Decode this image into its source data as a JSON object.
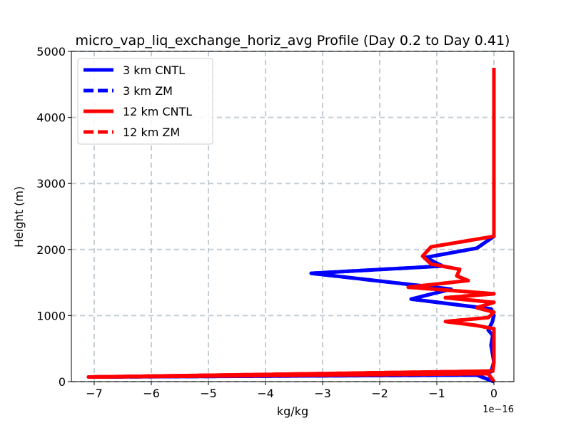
{
  "chart_data": {
    "type": "line",
    "title": "micro_vap_liq_exchange_horiz_avg Profile (Day 0.2 to Day 0.41)",
    "xlabel": "kg/kg",
    "ylabel": "Height (m)",
    "x_offset_label": "1e−16",
    "x_scale": 1e-16,
    "xlim": [
      -7.4,
      0.35
    ],
    "ylim": [
      0,
      5000
    ],
    "grid": true,
    "grid_style": "dashed",
    "legend_position": "upper-left",
    "x_ticks": [
      -7,
      -6,
      -5,
      -4,
      -3,
      -2,
      -1,
      0
    ],
    "x_tick_labels": [
      "−7",
      "−6",
      "−5",
      "−4",
      "−3",
      "−2",
      "−1",
      "0"
    ],
    "y_ticks": [
      0,
      1000,
      2000,
      3000,
      4000,
      5000
    ],
    "y_tick_labels": [
      "0",
      "1000",
      "2000",
      "3000",
      "4000",
      "5000"
    ],
    "series": [
      {
        "name": "3 km CNTL",
        "color": "#0000ff",
        "dash": "solid",
        "points": [
          [
            0,
            0
          ],
          [
            -0.3,
            100
          ],
          [
            -7.1,
            70
          ],
          [
            -0.05,
            150
          ],
          [
            0,
            300
          ],
          [
            -0.05,
            550
          ],
          [
            -0.02,
            700
          ],
          [
            -0.1,
            780
          ],
          [
            -0.03,
            900
          ],
          [
            0,
            1000
          ],
          [
            -0.05,
            1100
          ],
          [
            -1.45,
            1250
          ],
          [
            -0.75,
            1400
          ],
          [
            -3.2,
            1640
          ],
          [
            -0.9,
            1750
          ],
          [
            -1.2,
            1880
          ],
          [
            -0.3,
            2020
          ],
          [
            0,
            2200
          ],
          [
            0,
            2500
          ],
          [
            0,
            3000
          ],
          [
            0,
            4000
          ],
          [
            0,
            4750
          ]
        ]
      },
      {
        "name": "3 km ZM",
        "color": "#0000ff",
        "dash": "dashed",
        "points": [
          [
            0,
            0
          ],
          [
            -0.3,
            100
          ],
          [
            -7.1,
            70
          ],
          [
            -0.05,
            150
          ],
          [
            0,
            300
          ],
          [
            -0.05,
            550
          ],
          [
            -0.02,
            700
          ],
          [
            -0.1,
            780
          ],
          [
            -0.03,
            900
          ],
          [
            0,
            1000
          ],
          [
            -0.05,
            1100
          ],
          [
            -1.45,
            1250
          ],
          [
            -0.75,
            1400
          ],
          [
            -3.2,
            1640
          ],
          [
            -0.9,
            1750
          ],
          [
            -1.2,
            1880
          ],
          [
            -0.3,
            2020
          ],
          [
            0,
            2200
          ],
          [
            0,
            2500
          ],
          [
            0,
            3000
          ],
          [
            0,
            4000
          ],
          [
            0,
            4750
          ]
        ]
      },
      {
        "name": "12 km CNTL",
        "color": "#ff0000",
        "dash": "solid",
        "points": [
          [
            0,
            0
          ],
          [
            -0.1,
            120
          ],
          [
            -7.1,
            70
          ],
          [
            -0.02,
            160
          ],
          [
            0,
            300
          ],
          [
            0,
            600
          ],
          [
            0,
            800
          ],
          [
            -0.3,
            850
          ],
          [
            -0.85,
            910
          ],
          [
            -0.1,
            970
          ],
          [
            0,
            1050
          ],
          [
            -0.3,
            1120
          ],
          [
            0,
            1200
          ],
          [
            -0.85,
            1270
          ],
          [
            0,
            1330
          ],
          [
            -1.5,
            1430
          ],
          [
            -0.45,
            1530
          ],
          [
            -0.65,
            1600
          ],
          [
            -0.6,
            1700
          ],
          [
            -1.1,
            1780
          ],
          [
            -1.25,
            1900
          ],
          [
            -1.1,
            2040
          ],
          [
            0,
            2200
          ],
          [
            0,
            3000
          ],
          [
            0,
            4000
          ],
          [
            0,
            4750
          ]
        ]
      },
      {
        "name": "12 km ZM",
        "color": "#ff0000",
        "dash": "dashed",
        "points": [
          [
            0,
            0
          ],
          [
            -0.1,
            120
          ],
          [
            -7.1,
            70
          ],
          [
            -0.02,
            160
          ],
          [
            0,
            300
          ],
          [
            0,
            600
          ],
          [
            0,
            800
          ],
          [
            -0.3,
            850
          ],
          [
            -0.85,
            910
          ],
          [
            -0.1,
            970
          ],
          [
            0,
            1050
          ],
          [
            -0.3,
            1120
          ],
          [
            0,
            1200
          ],
          [
            -0.85,
            1270
          ],
          [
            0,
            1330
          ],
          [
            -1.5,
            1430
          ],
          [
            -0.45,
            1530
          ],
          [
            -0.65,
            1600
          ],
          [
            -0.6,
            1700
          ],
          [
            -1.1,
            1780
          ],
          [
            -1.25,
            1900
          ],
          [
            -1.1,
            2040
          ],
          [
            0,
            2200
          ],
          [
            0,
            3000
          ],
          [
            0,
            4000
          ],
          [
            0,
            4750
          ]
        ]
      }
    ]
  }
}
